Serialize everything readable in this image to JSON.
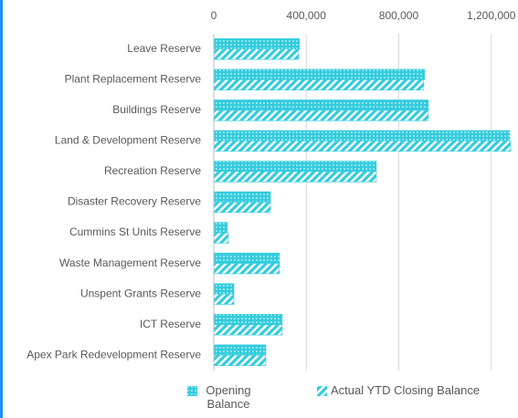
{
  "chart_data": {
    "type": "barh",
    "categories": [
      "Leave Reserve",
      "Plant Replacement Reserve",
      "Buildings Reserve",
      "Land & Development Reserve",
      "Recreation Reserve",
      "Disaster Recovery Reserve",
      "Cummins St Units Reserve",
      "Waste Management Reserve",
      "Unspent Grants Reserve",
      "ICT Reserve",
      "Apex Park Redevelopment Reserve"
    ],
    "series": [
      {
        "name": "Opening Balance",
        "color": "#33ccdd",
        "pattern": "dots",
        "values": [
          370000,
          912000,
          928000,
          1280000,
          703000,
          245000,
          59000,
          284000,
          87000,
          296000,
          225000
        ]
      },
      {
        "name": "Actual YTD Closing Balance",
        "color": "#33ccdd",
        "pattern": "stripes",
        "values": [
          367000,
          908000,
          928000,
          1283000,
          703000,
          245000,
          63000,
          284000,
          87000,
          296000,
          225000
        ]
      }
    ],
    "xlim": [
      0,
      1300000
    ],
    "xticks": [
      0,
      {
        "value": 400000,
        "label": "400,000"
      },
      {
        "value": 800000,
        "label": "800,000"
      },
      {
        "value": 1200000,
        "label": "1,200,000"
      }
    ],
    "grid": true,
    "legend": "bottom"
  }
}
